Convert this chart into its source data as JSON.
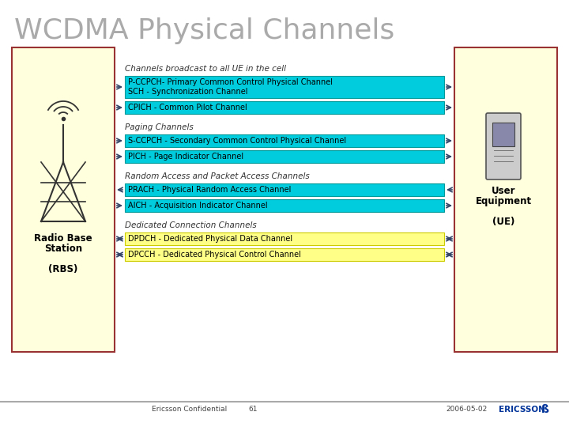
{
  "title": "WCDMA Physical Channels",
  "title_color": "#aaaaaa",
  "bg_color": "#ffffff",
  "left_panel_color": "#ffffdd",
  "left_panel_border": "#993333",
  "right_panel_color": "#ffffdd",
  "right_panel_border": "#993333",
  "cyan_box_color": "#00ccdd",
  "cyan_box_border": "#009999",
  "yellow_box_color": "#ffff88",
  "yellow_box_border": "#cccc00",
  "arrow_color": "#334466",
  "section_label_color": "#333333",
  "text_color": "#000000",
  "sections": [
    {
      "label": "Channels broadcast to all UE in the cell",
      "boxes": [
        {
          "text": "P-CCPCH- Primary Common Control Physical Channel\nSCH - Synchronization Channel",
          "color": "cyan",
          "direction": "right",
          "lines": 2
        },
        {
          "text": "CPICH - Common Pilot Channel",
          "color": "cyan",
          "direction": "right",
          "lines": 1
        }
      ]
    },
    {
      "label": "Paging Channels",
      "boxes": [
        {
          "text": "S-CCPCH - Secondary Common Control Physical Channel",
          "color": "cyan",
          "direction": "right",
          "lines": 1
        },
        {
          "text": "PICH - Page Indicator Channel",
          "color": "cyan",
          "direction": "right",
          "lines": 1
        }
      ]
    },
    {
      "label": "Random Access and Packet Access Channels",
      "boxes": [
        {
          "text": "PRACH - Physical Random Access Channel",
          "color": "cyan",
          "direction": "left",
          "lines": 1
        },
        {
          "text": "AICH - Acquisition Indicator Channel",
          "color": "cyan",
          "direction": "right",
          "lines": 1
        }
      ]
    },
    {
      "label": "Dedicated Connection Channels",
      "boxes": [
        {
          "text": "DPDCH - Dedicated Physical Data Channel",
          "color": "yellow",
          "direction": "both",
          "lines": 1
        },
        {
          "text": "DPCCH - Dedicated Physical Control Channel",
          "color": "yellow",
          "direction": "both",
          "lines": 1
        }
      ]
    }
  ],
  "left_label": [
    "Radio Base",
    "Station",
    "",
    "(RBS)"
  ],
  "right_label": [
    "User",
    "Equipment",
    "",
    "(UE)"
  ],
  "footer_left": "Ericsson Confidential",
  "footer_page": "61",
  "footer_date": "2006-05-02",
  "footer_company": "ERICSSON",
  "footer_bar_color": "#aaaaaa"
}
